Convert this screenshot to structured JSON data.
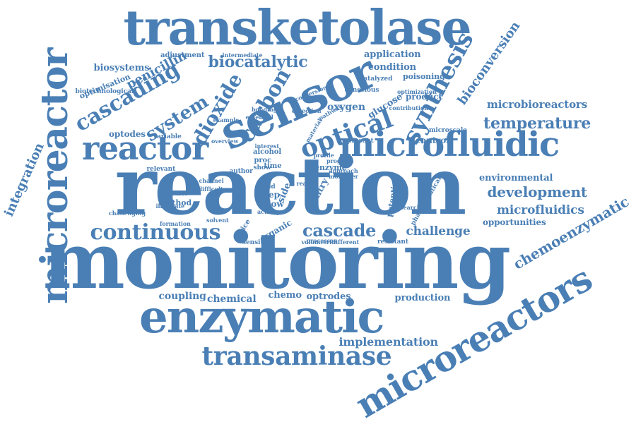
{
  "color": "#4a7fb5",
  "words": [
    {
      "text": "monitoring"
    },
    {
      "text": "reaction"
    },
    {
      "text": "transketolase"
    },
    {
      "text": "sensor"
    },
    {
      "text": "microreactor"
    },
    {
      "text": "enzymatic"
    },
    {
      "text": "microfluidic"
    },
    {
      "text": "microreactors"
    },
    {
      "text": "reactor"
    },
    {
      "text": "optical"
    },
    {
      "text": "transaminase"
    },
    {
      "text": "continuous"
    },
    {
      "text": "cascade"
    },
    {
      "text": "development"
    },
    {
      "text": "temperature"
    },
    {
      "text": "cascading"
    },
    {
      "text": "biocatalytic"
    },
    {
      "text": "synthesis"
    },
    {
      "text": "carbon"
    },
    {
      "text": "dioxide"
    },
    {
      "text": "system"
    },
    {
      "text": "chemoenzymatic"
    },
    {
      "text": "microfluidics"
    },
    {
      "text": "challenge"
    },
    {
      "text": "implementation"
    },
    {
      "text": "bioconversion"
    },
    {
      "text": "integration"
    },
    {
      "text": "penicillin"
    },
    {
      "text": "microbioreactors"
    },
    {
      "text": "environmental"
    },
    {
      "text": "opportunities"
    },
    {
      "text": "coupling"
    },
    {
      "text": "chemical"
    },
    {
      "text": "chemo"
    },
    {
      "text": "optrodes"
    },
    {
      "text": "production"
    },
    {
      "text": "application"
    },
    {
      "text": "condition"
    },
    {
      "text": "biosystems"
    },
    {
      "text": "optodes"
    },
    {
      "text": "oxygen"
    },
    {
      "text": "glucose"
    },
    {
      "text": "potential"
    },
    {
      "text": "poisoning"
    },
    {
      "text": "product"
    },
    {
      "text": "control"
    },
    {
      "text": "optimisation"
    },
    {
      "text": "adjustment"
    },
    {
      "text": "biotechnological"
    },
    {
      "text": "conscious"
    },
    {
      "text": "catalyzed"
    },
    {
      "text": "intermediate"
    },
    {
      "text": "enzyme"
    },
    {
      "text": "method"
    },
    {
      "text": "present"
    },
    {
      "text": "alcohol"
    },
    {
      "text": "step"
    },
    {
      "text": "flow"
    },
    {
      "text": "yield"
    },
    {
      "text": "entry"
    },
    {
      "text": "side"
    },
    {
      "text": "micro"
    },
    {
      "text": "organic"
    },
    {
      "text": "sensitive"
    },
    {
      "text": "device"
    },
    {
      "text": "volumetric"
    },
    {
      "text": "resistant"
    },
    {
      "text": "pharmaceutical"
    },
    {
      "text": "variable"
    },
    {
      "text": "relevant"
    },
    {
      "text": "challenging"
    },
    {
      "text": "available"
    },
    {
      "text": "microscale"
    },
    {
      "text": "optimization"
    },
    {
      "text": "contribution"
    },
    {
      "text": "time"
    },
    {
      "text": "author"
    },
    {
      "text": "proc"
    },
    {
      "text": "show"
    },
    {
      "text": "conversion"
    },
    {
      "text": "detection"
    },
    {
      "text": "processes"
    },
    {
      "text": "different"
    },
    {
      "text": "overview"
    },
    {
      "text": "formation"
    },
    {
      "text": "solvent"
    },
    {
      "text": "illustrate"
    },
    {
      "text": "approach"
    },
    {
      "text": "research"
    },
    {
      "text": "profile"
    },
    {
      "text": "real"
    },
    {
      "text": "activity"
    },
    {
      "text": "pathway"
    },
    {
      "text": "material"
    },
    {
      "text": "essential"
    },
    {
      "text": "bonding"
    },
    {
      "text": "interest"
    },
    {
      "text": "example"
    },
    {
      "text": "difficult"
    },
    {
      "text": "channel"
    },
    {
      "text": "moreover"
    },
    {
      "text": "progress"
    }
  ]
}
